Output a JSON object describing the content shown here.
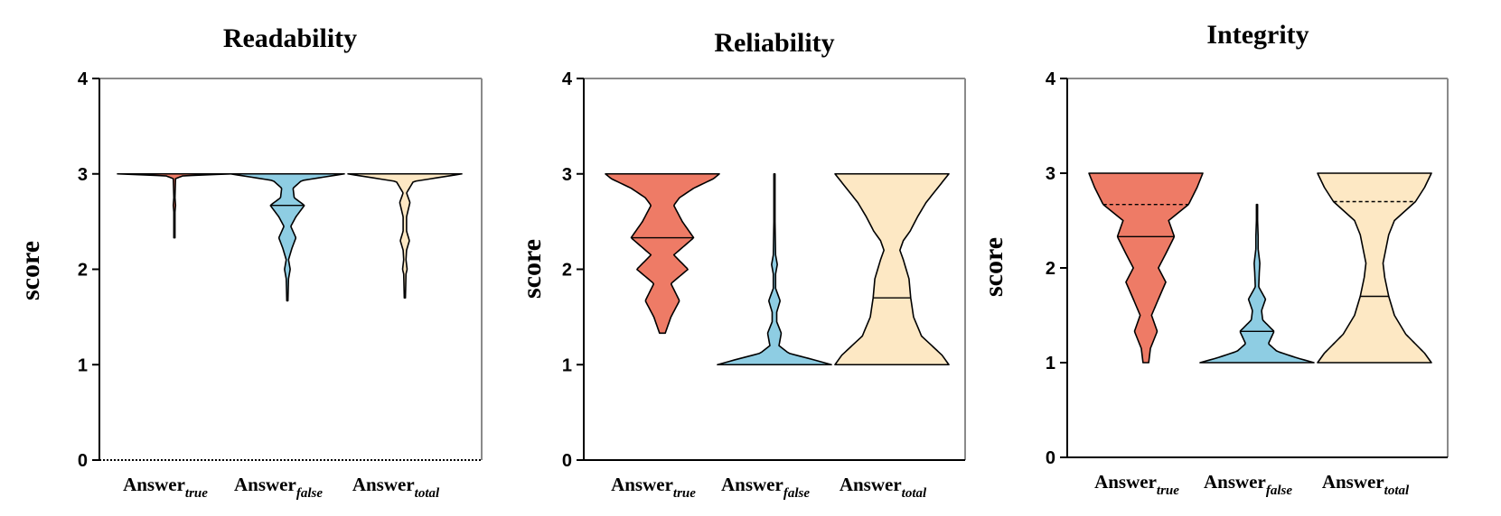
{
  "chart_data": [
    {
      "type": "violin",
      "title": "Readability",
      "ylabel": "score",
      "ylim": [
        0,
        4
      ],
      "yticks": [
        "0",
        "1",
        "2",
        "3",
        "4"
      ],
      "categories": [
        {
          "base": "Answer",
          "sub": "true"
        },
        {
          "base": "Answer",
          "sub": "false"
        },
        {
          "base": "Answer",
          "sub": "total"
        }
      ],
      "violins": [
        {
          "category": "true",
          "color": "#EE7B66",
          "min": 2.33,
          "max": 3.0,
          "profile": [
            [
              2.33,
              0.01
            ],
            [
              2.6,
              0.01
            ],
            [
              2.67,
              0.02
            ],
            [
              2.75,
              0.01
            ],
            [
              2.95,
              0.02
            ],
            [
              2.98,
              0.15
            ],
            [
              3.0,
              1.0
            ]
          ],
          "median": 3.0,
          "q1": 3.0,
          "q3": 3.0
        },
        {
          "category": "false",
          "color": "#8ECDE3",
          "min": 1.67,
          "max": 3.0,
          "profile": [
            [
              1.67,
              0.01
            ],
            [
              1.9,
              0.02
            ],
            [
              2.0,
              0.05
            ],
            [
              2.1,
              0.02
            ],
            [
              2.22,
              0.08
            ],
            [
              2.33,
              0.15
            ],
            [
              2.45,
              0.06
            ],
            [
              2.55,
              0.15
            ],
            [
              2.67,
              0.3
            ],
            [
              2.75,
              0.12
            ],
            [
              2.85,
              0.1
            ],
            [
              2.93,
              0.25
            ],
            [
              3.0,
              1.0
            ]
          ],
          "median": 3.0,
          "q1": 2.67,
          "q3": 3.0
        },
        {
          "category": "total",
          "color": "#FDE8C4",
          "min": 1.7,
          "max": 3.0,
          "profile": [
            [
              1.7,
              0.01
            ],
            [
              1.95,
              0.02
            ],
            [
              2.0,
              0.04
            ],
            [
              2.1,
              0.02
            ],
            [
              2.2,
              0.03
            ],
            [
              2.3,
              0.08
            ],
            [
              2.4,
              0.03
            ],
            [
              2.55,
              0.03
            ],
            [
              2.7,
              0.09
            ],
            [
              2.8,
              0.03
            ],
            [
              2.92,
              0.15
            ],
            [
              3.0,
              1.0
            ]
          ],
          "median": 3.0,
          "q1": 3.0,
          "q3": 3.0
        }
      ]
    },
    {
      "type": "violin",
      "title": "Reliability",
      "ylabel": "score",
      "ylim": [
        0,
        4
      ],
      "yticks": [
        "0",
        "1",
        "2",
        "3",
        "4"
      ],
      "categories": [
        {
          "base": "Answer",
          "sub": "true"
        },
        {
          "base": "Answer",
          "sub": "false"
        },
        {
          "base": "Answer",
          "sub": "total"
        }
      ],
      "violins": [
        {
          "category": "true",
          "color": "#EE7B66",
          "min": 1.33,
          "max": 3.0,
          "profile": [
            [
              1.33,
              0.05
            ],
            [
              1.5,
              0.15
            ],
            [
              1.67,
              0.3
            ],
            [
              1.85,
              0.15
            ],
            [
              2.0,
              0.45
            ],
            [
              2.15,
              0.2
            ],
            [
              2.33,
              0.55
            ],
            [
              2.5,
              0.35
            ],
            [
              2.67,
              0.2
            ],
            [
              2.75,
              0.3
            ],
            [
              2.85,
              0.55
            ],
            [
              2.95,
              0.9
            ],
            [
              3.0,
              1.0
            ]
          ],
          "median": 2.33,
          "q1": 2.33,
          "q3": 2.33
        },
        {
          "category": "false",
          "color": "#8ECDE3",
          "min": 1.0,
          "max": 3.0,
          "profile": [
            [
              1.0,
              1.0
            ],
            [
              1.05,
              0.7
            ],
            [
              1.12,
              0.25
            ],
            [
              1.2,
              0.08
            ],
            [
              1.33,
              0.12
            ],
            [
              1.45,
              0.04
            ],
            [
              1.55,
              0.04
            ],
            [
              1.67,
              0.1
            ],
            [
              1.8,
              0.02
            ],
            [
              1.95,
              0.02
            ],
            [
              2.05,
              0.05
            ],
            [
              2.15,
              0.02
            ],
            [
              2.5,
              0.01
            ],
            [
              3.0,
              0.01
            ]
          ],
          "median": 1.0,
          "q1": 1.0,
          "q3": 1.0
        },
        {
          "category": "total",
          "color": "#FDE8C4",
          "min": 1.0,
          "max": 3.0,
          "profile": [
            [
              1.0,
              1.0
            ],
            [
              1.1,
              0.88
            ],
            [
              1.3,
              0.52
            ],
            [
              1.5,
              0.38
            ],
            [
              1.7,
              0.33
            ],
            [
              1.9,
              0.3
            ],
            [
              2.1,
              0.2
            ],
            [
              2.2,
              0.14
            ],
            [
              2.3,
              0.2
            ],
            [
              2.4,
              0.32
            ],
            [
              2.55,
              0.45
            ],
            [
              2.7,
              0.6
            ],
            [
              2.85,
              0.8
            ],
            [
              3.0,
              1.0
            ]
          ],
          "median": 1.7,
          "q1": 1.7,
          "q3": 1.7
        }
      ]
    },
    {
      "type": "violin",
      "title": "Integrity",
      "ylabel": "score",
      "ylim": [
        0,
        4
      ],
      "yticks": [
        "0",
        "1",
        "2",
        "3",
        "4"
      ],
      "categories": [
        {
          "base": "Answer",
          "sub": "true"
        },
        {
          "base": "Answer",
          "sub": "false"
        },
        {
          "base": "Answer",
          "sub": "total"
        }
      ],
      "violins": [
        {
          "category": "true",
          "color": "#EE7B66",
          "min": 1.0,
          "max": 3.0,
          "profile": [
            [
              1.0,
              0.05
            ],
            [
              1.15,
              0.08
            ],
            [
              1.33,
              0.2
            ],
            [
              1.5,
              0.1
            ],
            [
              1.67,
              0.22
            ],
            [
              1.85,
              0.35
            ],
            [
              2.0,
              0.22
            ],
            [
              2.15,
              0.35
            ],
            [
              2.33,
              0.5
            ],
            [
              2.5,
              0.4
            ],
            [
              2.67,
              0.75
            ],
            [
              2.85,
              0.9
            ],
            [
              3.0,
              1.0
            ]
          ],
          "median": 2.67,
          "q1": 2.33,
          "q3": 2.67
        },
        {
          "category": "false",
          "color": "#8ECDE3",
          "min": 1.0,
          "max": 2.67,
          "profile": [
            [
              1.0,
              1.0
            ],
            [
              1.05,
              0.7
            ],
            [
              1.12,
              0.35
            ],
            [
              1.2,
              0.2
            ],
            [
              1.33,
              0.3
            ],
            [
              1.45,
              0.1
            ],
            [
              1.55,
              0.08
            ],
            [
              1.67,
              0.15
            ],
            [
              1.8,
              0.03
            ],
            [
              1.95,
              0.04
            ],
            [
              2.05,
              0.05
            ],
            [
              2.2,
              0.02
            ],
            [
              2.33,
              0.02
            ],
            [
              2.5,
              0.01
            ],
            [
              2.67,
              0.01
            ]
          ],
          "median": 1.33,
          "q1": 1.33,
          "q3": 1.33
        },
        {
          "category": "total",
          "color": "#FDE8C4",
          "min": 1.0,
          "max": 3.0,
          "profile": [
            [
              1.0,
              1.0
            ],
            [
              1.1,
              0.88
            ],
            [
              1.3,
              0.55
            ],
            [
              1.5,
              0.35
            ],
            [
              1.7,
              0.25
            ],
            [
              1.9,
              0.18
            ],
            [
              2.05,
              0.15
            ],
            [
              2.2,
              0.2
            ],
            [
              2.35,
              0.25
            ],
            [
              2.5,
              0.35
            ],
            [
              2.7,
              0.72
            ],
            [
              2.85,
              0.88
            ],
            [
              3.0,
              1.0
            ]
          ],
          "median": 2.7,
          "q1": 1.7,
          "q3": 2.7
        }
      ]
    }
  ]
}
